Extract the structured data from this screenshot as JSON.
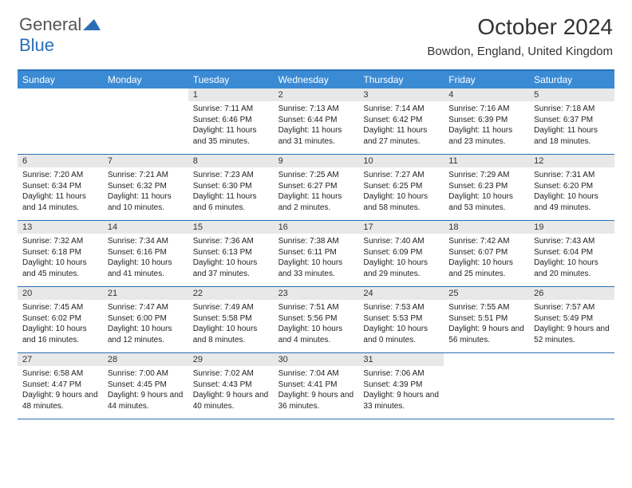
{
  "logo": {
    "part1": "General",
    "part2": "Blue"
  },
  "title": "October 2024",
  "location": "Bowdon, England, United Kingdom",
  "colors": {
    "header_bg": "#3b8bd4",
    "border": "#2a6fb5",
    "daynum_bg": "#e8e8e8"
  },
  "dayNames": [
    "Sunday",
    "Monday",
    "Tuesday",
    "Wednesday",
    "Thursday",
    "Friday",
    "Saturday"
  ],
  "weeks": [
    [
      {
        "n": "",
        "empty": true
      },
      {
        "n": "",
        "empty": true
      },
      {
        "n": "1",
        "sr": "Sunrise: 7:11 AM",
        "ss": "Sunset: 6:46 PM",
        "dl": "Daylight: 11 hours and 35 minutes."
      },
      {
        "n": "2",
        "sr": "Sunrise: 7:13 AM",
        "ss": "Sunset: 6:44 PM",
        "dl": "Daylight: 11 hours and 31 minutes."
      },
      {
        "n": "3",
        "sr": "Sunrise: 7:14 AM",
        "ss": "Sunset: 6:42 PM",
        "dl": "Daylight: 11 hours and 27 minutes."
      },
      {
        "n": "4",
        "sr": "Sunrise: 7:16 AM",
        "ss": "Sunset: 6:39 PM",
        "dl": "Daylight: 11 hours and 23 minutes."
      },
      {
        "n": "5",
        "sr": "Sunrise: 7:18 AM",
        "ss": "Sunset: 6:37 PM",
        "dl": "Daylight: 11 hours and 18 minutes."
      }
    ],
    [
      {
        "n": "6",
        "sr": "Sunrise: 7:20 AM",
        "ss": "Sunset: 6:34 PM",
        "dl": "Daylight: 11 hours and 14 minutes."
      },
      {
        "n": "7",
        "sr": "Sunrise: 7:21 AM",
        "ss": "Sunset: 6:32 PM",
        "dl": "Daylight: 11 hours and 10 minutes."
      },
      {
        "n": "8",
        "sr": "Sunrise: 7:23 AM",
        "ss": "Sunset: 6:30 PM",
        "dl": "Daylight: 11 hours and 6 minutes."
      },
      {
        "n": "9",
        "sr": "Sunrise: 7:25 AM",
        "ss": "Sunset: 6:27 PM",
        "dl": "Daylight: 11 hours and 2 minutes."
      },
      {
        "n": "10",
        "sr": "Sunrise: 7:27 AM",
        "ss": "Sunset: 6:25 PM",
        "dl": "Daylight: 10 hours and 58 minutes."
      },
      {
        "n": "11",
        "sr": "Sunrise: 7:29 AM",
        "ss": "Sunset: 6:23 PM",
        "dl": "Daylight: 10 hours and 53 minutes."
      },
      {
        "n": "12",
        "sr": "Sunrise: 7:31 AM",
        "ss": "Sunset: 6:20 PM",
        "dl": "Daylight: 10 hours and 49 minutes."
      }
    ],
    [
      {
        "n": "13",
        "sr": "Sunrise: 7:32 AM",
        "ss": "Sunset: 6:18 PM",
        "dl": "Daylight: 10 hours and 45 minutes."
      },
      {
        "n": "14",
        "sr": "Sunrise: 7:34 AM",
        "ss": "Sunset: 6:16 PM",
        "dl": "Daylight: 10 hours and 41 minutes."
      },
      {
        "n": "15",
        "sr": "Sunrise: 7:36 AM",
        "ss": "Sunset: 6:13 PM",
        "dl": "Daylight: 10 hours and 37 minutes."
      },
      {
        "n": "16",
        "sr": "Sunrise: 7:38 AM",
        "ss": "Sunset: 6:11 PM",
        "dl": "Daylight: 10 hours and 33 minutes."
      },
      {
        "n": "17",
        "sr": "Sunrise: 7:40 AM",
        "ss": "Sunset: 6:09 PM",
        "dl": "Daylight: 10 hours and 29 minutes."
      },
      {
        "n": "18",
        "sr": "Sunrise: 7:42 AM",
        "ss": "Sunset: 6:07 PM",
        "dl": "Daylight: 10 hours and 25 minutes."
      },
      {
        "n": "19",
        "sr": "Sunrise: 7:43 AM",
        "ss": "Sunset: 6:04 PM",
        "dl": "Daylight: 10 hours and 20 minutes."
      }
    ],
    [
      {
        "n": "20",
        "sr": "Sunrise: 7:45 AM",
        "ss": "Sunset: 6:02 PM",
        "dl": "Daylight: 10 hours and 16 minutes."
      },
      {
        "n": "21",
        "sr": "Sunrise: 7:47 AM",
        "ss": "Sunset: 6:00 PM",
        "dl": "Daylight: 10 hours and 12 minutes."
      },
      {
        "n": "22",
        "sr": "Sunrise: 7:49 AM",
        "ss": "Sunset: 5:58 PM",
        "dl": "Daylight: 10 hours and 8 minutes."
      },
      {
        "n": "23",
        "sr": "Sunrise: 7:51 AM",
        "ss": "Sunset: 5:56 PM",
        "dl": "Daylight: 10 hours and 4 minutes."
      },
      {
        "n": "24",
        "sr": "Sunrise: 7:53 AM",
        "ss": "Sunset: 5:53 PM",
        "dl": "Daylight: 10 hours and 0 minutes."
      },
      {
        "n": "25",
        "sr": "Sunrise: 7:55 AM",
        "ss": "Sunset: 5:51 PM",
        "dl": "Daylight: 9 hours and 56 minutes."
      },
      {
        "n": "26",
        "sr": "Sunrise: 7:57 AM",
        "ss": "Sunset: 5:49 PM",
        "dl": "Daylight: 9 hours and 52 minutes."
      }
    ],
    [
      {
        "n": "27",
        "sr": "Sunrise: 6:58 AM",
        "ss": "Sunset: 4:47 PM",
        "dl": "Daylight: 9 hours and 48 minutes."
      },
      {
        "n": "28",
        "sr": "Sunrise: 7:00 AM",
        "ss": "Sunset: 4:45 PM",
        "dl": "Daylight: 9 hours and 44 minutes."
      },
      {
        "n": "29",
        "sr": "Sunrise: 7:02 AM",
        "ss": "Sunset: 4:43 PM",
        "dl": "Daylight: 9 hours and 40 minutes."
      },
      {
        "n": "30",
        "sr": "Sunrise: 7:04 AM",
        "ss": "Sunset: 4:41 PM",
        "dl": "Daylight: 9 hours and 36 minutes."
      },
      {
        "n": "31",
        "sr": "Sunrise: 7:06 AM",
        "ss": "Sunset: 4:39 PM",
        "dl": "Daylight: 9 hours and 33 minutes."
      },
      {
        "n": "",
        "empty": true
      },
      {
        "n": "",
        "empty": true
      }
    ]
  ]
}
